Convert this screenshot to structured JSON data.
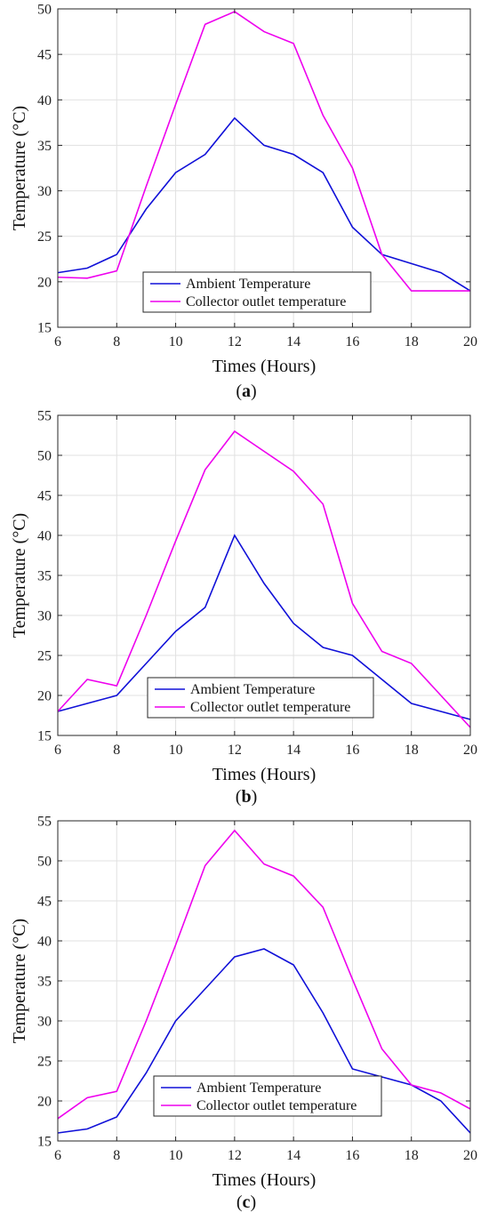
{
  "chart_data": [
    {
      "type": "line",
      "caption": "a",
      "xlabel": "Times (Hours)",
      "ylabel": "Temperature (°C)",
      "xlim": [
        6,
        20
      ],
      "ylim": [
        15,
        50
      ],
      "xticks": [
        6,
        8,
        10,
        12,
        14,
        16,
        18,
        20
      ],
      "yticks": [
        15,
        20,
        25,
        30,
        35,
        40,
        45,
        50
      ],
      "grid": true,
      "legend": "bottom-center",
      "x": [
        6,
        7,
        8,
        9,
        10,
        11,
        12,
        13,
        14,
        15,
        16,
        17,
        18,
        19,
        20
      ],
      "series": [
        {
          "name": "Ambient Temperature",
          "color": "#1010d8",
          "values": [
            21,
            21.5,
            23,
            28,
            32,
            34,
            38,
            35,
            34,
            32,
            26,
            23,
            22,
            21,
            19
          ]
        },
        {
          "name": "Collector outlet temperature",
          "color": "#ee00ee",
          "values": [
            20.5,
            20.4,
            21.2,
            30.5,
            39.5,
            48.3,
            49.7,
            47.5,
            46.2,
            38.3,
            32.5,
            23,
            19,
            19,
            19
          ]
        }
      ]
    },
    {
      "type": "line",
      "caption": "b",
      "xlabel": "Times (Hours)",
      "ylabel": "Temperature (°C)",
      "xlim": [
        6,
        20
      ],
      "ylim": [
        15,
        55
      ],
      "xticks": [
        6,
        8,
        10,
        12,
        14,
        16,
        18,
        20
      ],
      "yticks": [
        15,
        20,
        25,
        30,
        35,
        40,
        45,
        50,
        55
      ],
      "grid": true,
      "legend": "bottom-center",
      "x": [
        6,
        7,
        8,
        9,
        10,
        11,
        12,
        13,
        14,
        15,
        16,
        17,
        18,
        19,
        20
      ],
      "series": [
        {
          "name": "Ambient Temperature",
          "color": "#1010d8",
          "values": [
            18,
            19,
            20,
            24,
            28,
            31,
            40,
            34,
            29,
            26,
            25,
            22,
            19,
            18,
            17
          ]
        },
        {
          "name": "Collector outlet temperature",
          "color": "#ee00ee",
          "values": [
            18,
            22,
            21.2,
            30,
            39.3,
            48.2,
            53,
            50.5,
            48,
            43.9,
            31.5,
            25.5,
            24,
            20,
            16
          ]
        }
      ]
    },
    {
      "type": "line",
      "caption": "c",
      "xlabel": "Times (Hours)",
      "ylabel": "Temperature (°C)",
      "xlim": [
        6,
        20
      ],
      "ylim": [
        15,
        55
      ],
      "xticks": [
        6,
        8,
        10,
        12,
        14,
        16,
        18,
        20
      ],
      "yticks": [
        15,
        20,
        25,
        30,
        35,
        40,
        45,
        50,
        55
      ],
      "grid": true,
      "legend": "bottom-center",
      "x": [
        6,
        7,
        8,
        9,
        10,
        11,
        12,
        13,
        14,
        15,
        16,
        17,
        18,
        19,
        20
      ],
      "series": [
        {
          "name": "Ambient Temperature",
          "color": "#1010d8",
          "values": [
            16,
            16.5,
            18,
            23.5,
            30,
            34,
            38,
            39,
            37,
            31,
            24,
            23,
            22,
            20,
            16
          ]
        },
        {
          "name": "Collector outlet temperature",
          "color": "#ee00ee",
          "values": [
            17.8,
            20.4,
            21.2,
            30,
            39.5,
            49.4,
            53.8,
            49.6,
            48.1,
            44.2,
            35.2,
            26.5,
            22,
            21,
            19
          ]
        }
      ]
    }
  ]
}
